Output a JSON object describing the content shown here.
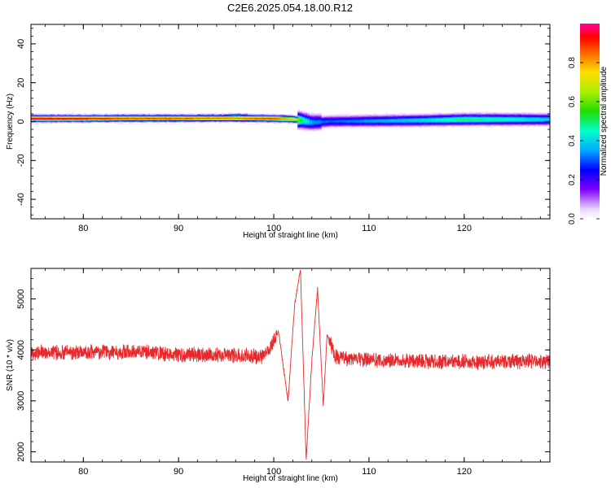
{
  "title": "C2E6.2025.054.18.00.R12",
  "chart_data": [
    {
      "type": "heatmap",
      "xlabel": "Height of straight line (km)",
      "ylabel": "Frequency (Hz)",
      "xlim": [
        74.5,
        129
      ],
      "ylim": [
        -50,
        50
      ],
      "xticks": [
        80,
        90,
        100,
        110,
        120
      ],
      "yticks": [
        -40,
        -20,
        0,
        20,
        40
      ],
      "ridge": {
        "x": [
          75,
          80,
          85,
          90,
          95,
          100,
          102,
          103,
          104,
          106,
          110,
          115,
          120,
          125,
          129
        ],
        "freq": [
          1.5,
          1.5,
          1.6,
          1.6,
          1.7,
          1.5,
          1.2,
          0.5,
          -0.5,
          0.0,
          0.2,
          0.5,
          1.0,
          1.0,
          1.0
        ],
        "amplitude": [
          1.0,
          0.95,
          0.9,
          0.9,
          0.85,
          0.9,
          0.8,
          0.5,
          0.35,
          0.3,
          0.35,
          0.4,
          0.5,
          0.45,
          0.4
        ]
      },
      "colorbar": {
        "label": "Normalized spectral amplitude",
        "range": [
          0,
          1
        ],
        "ticks": [
          "0.0",
          "0.2",
          "0.4",
          "0.6",
          "0.8"
        ],
        "tick_values": [
          0.0,
          0.2,
          0.4,
          0.6,
          0.8
        ]
      }
    },
    {
      "type": "line",
      "xlabel": "Height of straight line (km)",
      "ylabel": "SNR (10 * v/v)",
      "xlim": [
        74.5,
        129
      ],
      "ylim": [
        1800,
        5600
      ],
      "xticks": [
        80,
        90,
        100,
        110,
        120
      ],
      "yticks": [
        2000,
        3000,
        4000,
        5000
      ],
      "color": "#e8282b",
      "series": [
        {
          "x": [
            74.5,
            80,
            86,
            90,
            95,
            99,
            100.5,
            101.5,
            102.2,
            102.8,
            103.4,
            104.0,
            104.6,
            105.2,
            105.6,
            106.5,
            110,
            115,
            120,
            125,
            129
          ],
          "y": [
            3950,
            3950,
            3960,
            3900,
            3900,
            3870,
            4350,
            3000,
            4900,
            5600,
            1850,
            3800,
            5200,
            2900,
            4300,
            3860,
            3800,
            3780,
            3760,
            3770,
            3780
          ]
        }
      ]
    }
  ]
}
